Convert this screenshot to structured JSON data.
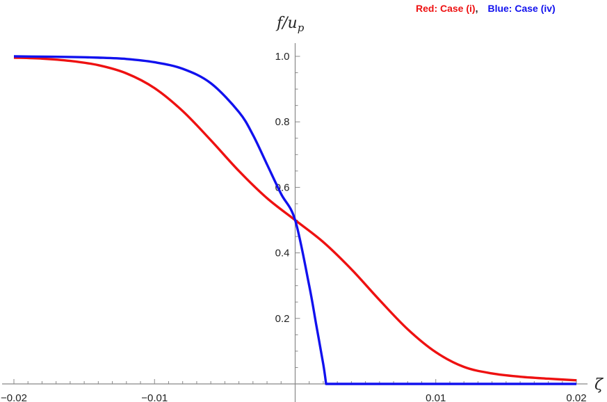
{
  "legend": {
    "red_label": "Red: Case (i)",
    "separator": ",",
    "blue_label": "Blue: Case (iv)",
    "red_color": "#ee1111",
    "blue_color": "#1111ee"
  },
  "chart_data": {
    "type": "line",
    "xlabel": "ζ",
    "ylabel": "f/u_p",
    "ylabel_main": "f/u",
    "ylabel_sub": "p",
    "xlim": [
      -0.02,
      0.02
    ],
    "ylim": [
      0,
      1.05
    ],
    "x_ticks": [
      -0.02,
      -0.01,
      0.01,
      0.02
    ],
    "x_tick_labels": [
      "−0.02",
      "−0.01",
      "0.01",
      "0.02"
    ],
    "y_ticks": [
      0.2,
      0.4,
      0.6,
      0.8,
      1.0
    ],
    "y_tick_labels": [
      "0.2",
      "0.4",
      "0.6",
      "0.8",
      "1.0"
    ],
    "grid": false,
    "legend_position": "top-right",
    "series": [
      {
        "name": "Red: Case (i)",
        "color": "#ee1111",
        "x": [
          -0.02,
          -0.018,
          -0.016,
          -0.014,
          -0.012,
          -0.01,
          -0.008,
          -0.006,
          -0.004,
          -0.002,
          0.0,
          0.002,
          0.004,
          0.006,
          0.008,
          0.01,
          0.012,
          0.014,
          0.016,
          0.018,
          0.02
        ],
        "y": [
          0.996,
          0.993,
          0.986,
          0.973,
          0.948,
          0.903,
          0.833,
          0.744,
          0.65,
          0.567,
          0.5,
          0.433,
          0.35,
          0.256,
          0.167,
          0.097,
          0.052,
          0.032,
          0.022,
          0.016,
          0.011
        ]
      },
      {
        "name": "Blue: Case (iv)",
        "color": "#1111ee",
        "x": [
          -0.02,
          -0.018,
          -0.016,
          -0.014,
          -0.012,
          -0.01,
          -0.008,
          -0.006,
          -0.004,
          -0.003,
          -0.002,
          -0.001,
          0.0,
          0.001,
          0.0015,
          0.002,
          0.0022,
          0.02
        ],
        "y": [
          1.0,
          0.999,
          0.998,
          0.996,
          0.992,
          0.982,
          0.962,
          0.918,
          0.83,
          0.76,
          0.67,
          0.58,
          0.5,
          0.3,
          0.18,
          0.06,
          0.0,
          0.0
        ]
      }
    ]
  }
}
